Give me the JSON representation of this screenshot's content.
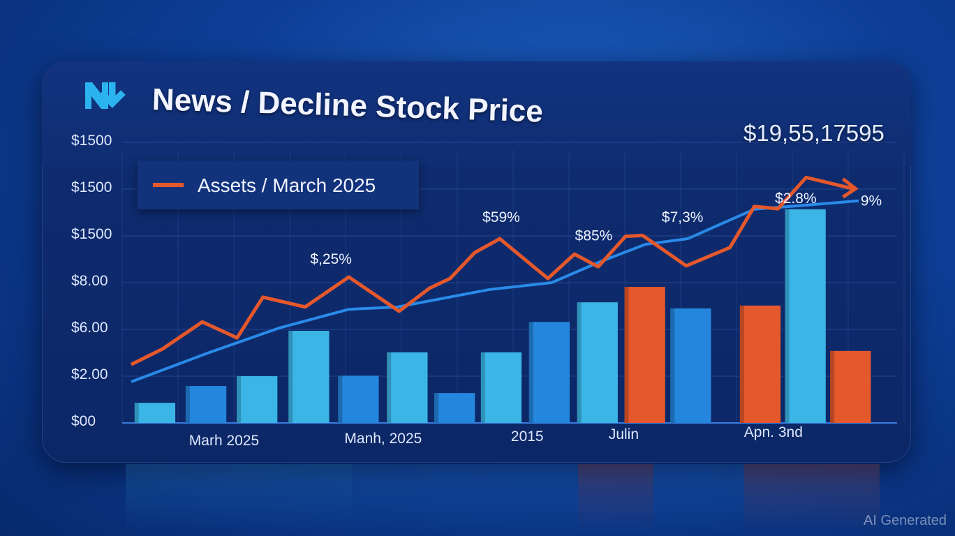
{
  "header": {
    "title": "News / Decline Stock Price",
    "headline_value": "$19,55,17595",
    "logo_icon": "news-decline-logo-icon"
  },
  "watermark": "AI Generated",
  "colors": {
    "orange": "#e5582c",
    "light_blue": "#3bb4e6",
    "mid_blue": "#2486dc",
    "line_blue": "#2a8ae8"
  },
  "chart_data": {
    "type": "bar",
    "title": "News / Decline Stock Price",
    "legend": [
      {
        "label": "Assets / March 2025",
        "color": "#e5582c"
      }
    ],
    "legend_position": "top-left",
    "y_ticks": [
      "$00",
      "$2.00",
      "$6.00",
      "$8.00",
      "$1500",
      "$1500",
      "$1500"
    ],
    "x_ticks": [
      {
        "label": "Marh 2025",
        "x": 13
      },
      {
        "label": "Manh, 2025",
        "x": 34
      },
      {
        "label": "2015",
        "x": 56.5
      },
      {
        "label": "Julin",
        "x": 69.7
      },
      {
        "label": "Apn. 3nd",
        "x": 88
      }
    ],
    "x_range": [
      0,
      100
    ],
    "y_range": [
      0,
      6
    ],
    "grid": true,
    "bars": [
      {
        "x": 3.2,
        "value": 0.43,
        "color": "light_blue"
      },
      {
        "x": 10.1,
        "value": 0.79,
        "color": "mid_blue"
      },
      {
        "x": 17.0,
        "value": 1.0,
        "color": "light_blue"
      },
      {
        "x": 24.0,
        "value": 1.97,
        "color": "light_blue"
      },
      {
        "x": 30.7,
        "value": 1.01,
        "color": "mid_blue"
      },
      {
        "x": 37.3,
        "value": 1.51,
        "color": "light_blue"
      },
      {
        "x": 43.7,
        "value": 0.64,
        "color": "mid_blue"
      },
      {
        "x": 50.0,
        "value": 1.51,
        "color": "light_blue"
      },
      {
        "x": 56.5,
        "value": 2.16,
        "color": "mid_blue"
      },
      {
        "x": 63.0,
        "value": 2.58,
        "color": "light_blue"
      },
      {
        "x": 69.4,
        "value": 2.91,
        "color": "orange"
      },
      {
        "x": 75.6,
        "value": 2.45,
        "color": "mid_blue"
      },
      {
        "x": 85.0,
        "value": 2.51,
        "color": "orange"
      },
      {
        "x": 91.1,
        "value": 4.57,
        "color": "light_blue"
      },
      {
        "x": 97.2,
        "value": 1.54,
        "color": "orange"
      }
    ],
    "series": [
      {
        "name": "Assets / March 2025",
        "color": "orange",
        "x": [
          0,
          4.2,
          9.6,
          14.3,
          17.8,
          23.5,
          29.4,
          36.2,
          40.3,
          43.1,
          46.4,
          49.8,
          56.3,
          59.9,
          63.1,
          66.8,
          69.1,
          75,
          80.9,
          84.2,
          87.4,
          91.2,
          97.5
        ],
        "y": [
          1.25,
          1.58,
          2.16,
          1.82,
          2.69,
          2.48,
          3.12,
          2.39,
          2.88,
          3.09,
          3.64,
          3.94,
          3.09,
          3.61,
          3.34,
          3.99,
          4.01,
          3.36,
          3.75,
          4.63,
          4.58,
          5.25,
          5.01
        ]
      },
      {
        "name": "trend",
        "color": "line_blue",
        "x": [
          0,
          10.6,
          20,
          29.4,
          36,
          48.3,
          56.8,
          63.4,
          69.5,
          75.2,
          84.2,
          89.8,
          98.3
        ],
        "y": [
          0.88,
          1.51,
          2.03,
          2.43,
          2.48,
          2.85,
          3.0,
          3.45,
          3.82,
          3.94,
          4.57,
          4.64,
          4.75
        ]
      }
    ],
    "annotations": [
      {
        "text": "$,25%",
        "x": 27,
        "y": 3.4
      },
      {
        "text": "$59%",
        "x": 50,
        "y": 4.3
      },
      {
        "text": "$85%",
        "x": 62.5,
        "y": 3.9
      },
      {
        "text": "$7,3%",
        "x": 74.5,
        "y": 4.3
      },
      {
        "text": "$2.8%",
        "x": 89.8,
        "y": 4.7
      },
      {
        "text": "9%",
        "x": 100,
        "y": 4.65
      }
    ]
  }
}
